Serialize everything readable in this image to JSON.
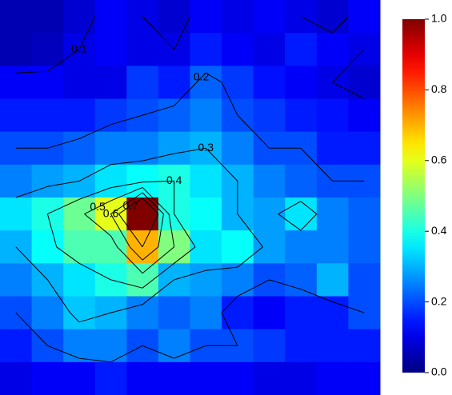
{
  "chart_data": {
    "type": "heatmap",
    "z": [
      [
        0.05,
        0.05,
        0.08,
        0.12,
        0.1,
        0.08,
        0.12,
        0.1,
        0.12,
        0.1,
        0.08,
        0.12
      ],
      [
        0.05,
        0.06,
        0.1,
        0.12,
        0.1,
        0.1,
        0.15,
        0.12,
        0.1,
        0.15,
        0.12,
        0.1
      ],
      [
        0.12,
        0.12,
        0.1,
        0.1,
        0.18,
        0.15,
        0.22,
        0.18,
        0.14,
        0.12,
        0.1,
        0.08
      ],
      [
        0.15,
        0.15,
        0.15,
        0.18,
        0.2,
        0.22,
        0.25,
        0.2,
        0.18,
        0.15,
        0.14,
        0.12
      ],
      [
        0.2,
        0.2,
        0.22,
        0.25,
        0.25,
        0.28,
        0.3,
        0.25,
        0.2,
        0.2,
        0.15,
        0.15
      ],
      [
        0.25,
        0.28,
        0.3,
        0.35,
        0.38,
        0.4,
        0.35,
        0.3,
        0.25,
        0.22,
        0.2,
        0.2
      ],
      [
        0.35,
        0.4,
        0.48,
        0.6,
        1.0,
        0.4,
        0.38,
        0.3,
        0.28,
        0.35,
        0.25,
        0.22
      ],
      [
        0.3,
        0.38,
        0.45,
        0.45,
        0.7,
        0.5,
        0.35,
        0.38,
        0.28,
        0.25,
        0.25,
        0.22
      ],
      [
        0.25,
        0.3,
        0.35,
        0.4,
        0.45,
        0.3,
        0.28,
        0.25,
        0.2,
        0.22,
        0.3,
        0.2
      ],
      [
        0.2,
        0.25,
        0.32,
        0.3,
        0.25,
        0.22,
        0.25,
        0.15,
        0.12,
        0.15,
        0.15,
        0.2
      ],
      [
        0.15,
        0.2,
        0.25,
        0.25,
        0.2,
        0.25,
        0.2,
        0.2,
        0.18,
        0.15,
        0.15,
        0.15
      ],
      [
        0.1,
        0.12,
        0.12,
        0.15,
        0.12,
        0.12,
        0.12,
        0.12,
        0.1,
        0.1,
        0.12,
        0.12
      ]
    ],
    "contour_levels": [
      0.1,
      0.2,
      0.3,
      0.4,
      0.5,
      0.6,
      0.7
    ],
    "colorscale": "jet",
    "clim": [
      0,
      1
    ],
    "cticks": [
      {
        "value": 0,
        "label": "0.0"
      },
      0.2,
      0.4,
      0.6,
      0.8,
      {
        "value": 1,
        "label": "1.0"
      }
    ]
  }
}
